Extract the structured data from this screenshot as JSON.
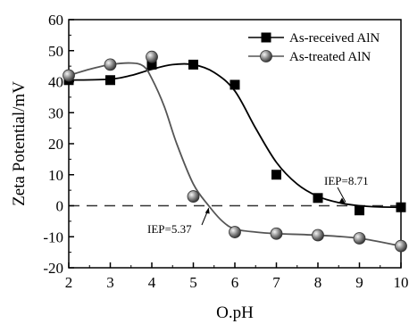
{
  "chart_data": {
    "type": "scatter",
    "title": "",
    "xlabel": "O.pH",
    "ylabel": "Zeta Potential/mV",
    "xlim": [
      2,
      10
    ],
    "ylim": [
      -20,
      60
    ],
    "xticks": [
      2,
      3,
      4,
      5,
      6,
      7,
      8,
      9,
      10
    ],
    "yticks": [
      -20,
      -10,
      0,
      10,
      20,
      30,
      40,
      50,
      60
    ],
    "grid": false,
    "legend_position": "top-right",
    "reference_line": {
      "y": 0,
      "style": "dashed"
    },
    "series": [
      {
        "name": "As-received AlN",
        "marker": "square",
        "color": "#000000",
        "x": [
          2,
          3,
          4,
          5,
          6,
          7,
          8,
          9,
          10
        ],
        "y": [
          40.5,
          40.5,
          45.5,
          45.5,
          39,
          10,
          2.5,
          -1.5,
          -0.5
        ],
        "fit_x": [
          2,
          3,
          3.5,
          4,
          4.5,
          5,
          5.5,
          6,
          6.5,
          7,
          7.5,
          8,
          8.5,
          9,
          9.5,
          10
        ],
        "fit_y": [
          40.5,
          40.8,
          42,
          44,
          45.5,
          45.5,
          43,
          37,
          25,
          14,
          7,
          3,
          1,
          0,
          -0.4,
          -0.5
        ]
      },
      {
        "name": "As-treated AlN",
        "marker": "sphere",
        "color": "#808080",
        "x": [
          2,
          3,
          4,
          5,
          6,
          7,
          8,
          9,
          10
        ],
        "y": [
          42,
          45.5,
          48,
          3,
          -8.5,
          -9,
          -9.5,
          -10.5,
          -13
        ],
        "fit_x": [
          2,
          2.5,
          3,
          3.5,
          3.8,
          4,
          4.3,
          4.6,
          5,
          5.37,
          5.7,
          6,
          6.5,
          7,
          8,
          9,
          10
        ],
        "fit_y": [
          42,
          44,
          45.5,
          46,
          45,
          41,
          32,
          20,
          7,
          0,
          -5,
          -7.5,
          -8.5,
          -9,
          -9.5,
          -10.5,
          -13
        ]
      }
    ],
    "annotations": [
      {
        "text": "IEP=8.71",
        "x": 8.71,
        "y": 0
      },
      {
        "text": "IEP=5.37",
        "x": 5.37,
        "y": 0
      }
    ]
  }
}
